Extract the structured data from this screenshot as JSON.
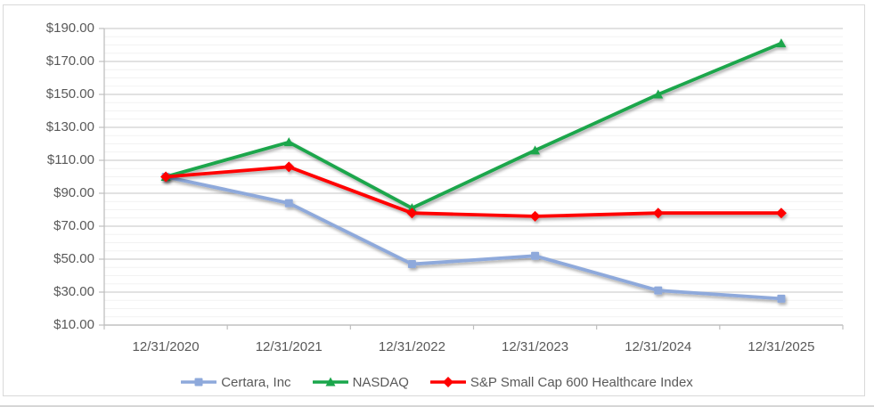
{
  "chart_data": {
    "type": "line",
    "title": "",
    "categories": [
      "12/31/2020",
      "12/31/2021",
      "12/31/2022",
      "12/31/2023",
      "12/31/2024",
      "12/31/2025"
    ],
    "series": [
      {
        "name": "Certara, Inc",
        "color": "#8EA9DB",
        "marker": "square",
        "values": [
          100,
          84,
          47,
          52,
          31,
          26
        ]
      },
      {
        "name": "NASDAQ",
        "color": "#1AA64B",
        "marker": "triangle",
        "values": [
          100,
          121,
          81,
          116,
          150,
          181
        ]
      },
      {
        "name": "S&P Small Cap 600 Healthcare Index",
        "color": "#FF0000",
        "marker": "diamond",
        "values": [
          100,
          106,
          78,
          76,
          78,
          78
        ]
      }
    ],
    "y_axis": {
      "min": 10,
      "max": 190,
      "major_unit": 20,
      "minor_unit": 5,
      "tick_values": [
        190,
        170,
        150,
        130,
        110,
        90,
        70,
        50,
        30,
        10
      ],
      "tick_labels": [
        "$190.00",
        "$170.00",
        "$150.00",
        "$130.00",
        "$110.00",
        "$90.00",
        "$70.00",
        "$50.00",
        "$30.00",
        "$10.00"
      ]
    },
    "x_axis": {
      "tick_labels": [
        "12/31/2020",
        "12/31/2021",
        "12/31/2022",
        "12/31/2023",
        "12/31/2024",
        "12/31/2025"
      ]
    },
    "legend": {
      "position": "bottom",
      "entries": [
        "Certara, Inc",
        "NASDAQ",
        "S&P Small Cap 600 Healthcare Index"
      ]
    },
    "grid": {
      "major_color": "#d9d9d9",
      "minor_color": "#f2f2f2",
      "minor_on": true
    },
    "axis_color": "#bfbfbf",
    "label_color": "#595959"
  }
}
